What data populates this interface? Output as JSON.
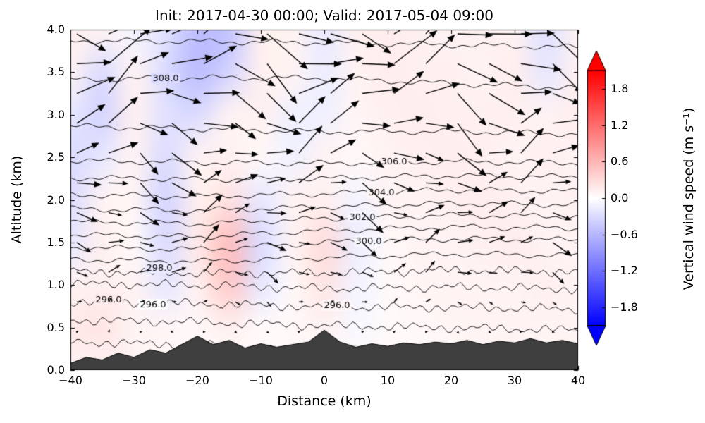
{
  "chart_data": {
    "type": "heatmap",
    "title": "Init: 2017-04-30 00:00; Valid: 2017-05-04 09:00",
    "xlabel": "Distance (km)",
    "ylabel": "Altitude (km)",
    "xlim": [
      -40,
      40
    ],
    "ylim": [
      0,
      4
    ],
    "grid": false,
    "x_ticks": [
      {
        "value": -40,
        "label": "−40"
      },
      {
        "value": -30,
        "label": "−30"
      },
      {
        "value": -20,
        "label": "−20"
      },
      {
        "value": -10,
        "label": "−10"
      },
      {
        "value": 0,
        "label": "0"
      },
      {
        "value": 10,
        "label": "10"
      },
      {
        "value": 20,
        "label": "20"
      },
      {
        "value": 30,
        "label": "30"
      },
      {
        "value": 40,
        "label": "40"
      }
    ],
    "y_ticks": [
      {
        "value": 0.0,
        "label": "0.0"
      },
      {
        "value": 0.5,
        "label": "0.5"
      },
      {
        "value": 1.0,
        "label": "1.0"
      },
      {
        "value": 1.5,
        "label": "1.5"
      },
      {
        "value": 2.0,
        "label": "2.0"
      },
      {
        "value": 2.5,
        "label": "2.5"
      },
      {
        "value": 3.0,
        "label": "3.0"
      },
      {
        "value": 3.5,
        "label": "3.5"
      },
      {
        "value": 4.0,
        "label": "4.0"
      }
    ],
    "colorbar": {
      "label": "Vertical wind speed (m s⁻¹)",
      "cmap": "bwr",
      "extend": "both",
      "vmin": -2.1,
      "vmax": 2.1,
      "ticks": [
        {
          "value": 1.8,
          "label": "1.8"
        },
        {
          "value": 1.2,
          "label": "1.2"
        },
        {
          "value": 0.6,
          "label": "0.6"
        },
        {
          "value": 0.0,
          "label": "0.0"
        },
        {
          "value": -0.6,
          "label": "−0.6"
        },
        {
          "value": -1.2,
          "label": "−1.2"
        },
        {
          "value": -1.8,
          "label": "−1.8"
        }
      ]
    },
    "w_field": {
      "x": [
        -40,
        -35,
        -30,
        -25,
        -20,
        -15,
        -10,
        -5,
        0,
        5,
        10,
        15,
        20,
        25,
        30,
        35,
        40
      ],
      "y": [
        0,
        0.5,
        1,
        1.5,
        2,
        2.5,
        3,
        3.5,
        4
      ],
      "values": [
        [
          0.08,
          0.1,
          0.1,
          0.06,
          0.05,
          0.06,
          0.05,
          0.05,
          0.06,
          0.05,
          0.05,
          0.05,
          0.05,
          0.06,
          0.05,
          0.05,
          0.05
        ],
        [
          0.18,
          0.22,
          0.1,
          0.08,
          0.06,
          0.12,
          0.05,
          0.06,
          0.1,
          -0.06,
          0.05,
          0.06,
          0.08,
          0.1,
          0.1,
          0.1,
          0.1
        ],
        [
          0.1,
          0.12,
          0.1,
          -0.2,
          0.12,
          0.45,
          -0.2,
          0.06,
          0.22,
          -0.1,
          0.05,
          0.08,
          0.1,
          0.1,
          0.1,
          0.12,
          0.1
        ],
        [
          -0.2,
          0.12,
          0.05,
          -0.3,
          0.18,
          0.55,
          -0.3,
          0.1,
          0.3,
          -0.15,
          0.06,
          0.1,
          0.1,
          0.12,
          0.15,
          0.1,
          0.1
        ],
        [
          -0.3,
          0.1,
          0.08,
          -0.35,
          0.12,
          0.25,
          -0.2,
          0.1,
          0.12,
          -0.1,
          0.1,
          0.1,
          0.12,
          0.15,
          0.12,
          0.1,
          0.12
        ],
        [
          -0.3,
          -0.2,
          0.1,
          -0.3,
          0.1,
          0.12,
          0.05,
          -0.12,
          0.1,
          0.06,
          0.1,
          0.12,
          0.15,
          0.12,
          0.1,
          0.12,
          0.1
        ],
        [
          -0.2,
          -0.35,
          0.12,
          -0.25,
          -0.3,
          0.1,
          0.12,
          -0.12,
          -0.12,
          0.08,
          0.12,
          0.15,
          0.12,
          0.12,
          0.12,
          0.1,
          0.15
        ],
        [
          0.1,
          -0.3,
          0.1,
          -0.3,
          -0.55,
          -0.35,
          0.12,
          0.1,
          -0.15,
          0.1,
          0.15,
          0.12,
          0.12,
          0.1,
          0.15,
          -0.2,
          0.12
        ],
        [
          0.12,
          0.1,
          -0.1,
          -0.25,
          -0.55,
          -0.5,
          0.12,
          0.1,
          -0.18,
          0.12,
          0.15,
          0.12,
          0.1,
          0.12,
          0.1,
          -0.25,
          0.1
        ]
      ]
    },
    "theta_contours": {
      "levels": [
        294,
        295,
        296,
        297,
        298,
        299,
        300,
        301,
        302,
        303,
        304,
        305,
        306,
        307,
        308,
        309
      ],
      "x": [
        -40,
        -20,
        0,
        20,
        40
      ],
      "y": [
        0,
        0.5,
        1,
        1.5,
        2,
        2.5,
        3,
        3.5,
        4
      ],
      "profiles": [
        [
          292.8,
          294.6,
          296.9,
          300.4,
          303.7,
          306.2,
          307.3,
          308.15,
          309.3
        ],
        [
          293.0,
          294.7,
          297.0,
          300.6,
          303.8,
          306.3,
          307.35,
          308.1,
          309.35
        ],
        [
          293.4,
          294.9,
          297.2,
          300.0,
          303.6,
          306.4,
          307.4,
          308.1,
          309.4
        ],
        [
          293.5,
          295.0,
          297.1,
          299.7,
          303.3,
          306.3,
          307.45,
          308.2,
          309.45
        ],
        [
          293.5,
          295.1,
          297.2,
          299.8,
          303.4,
          306.4,
          307.5,
          308.3,
          309.5
        ]
      ],
      "labels": [
        {
          "text": "308.0",
          "level": 308,
          "x": -25
        },
        {
          "text": "306.0",
          "level": 306,
          "x": 11
        },
        {
          "text": "304.0",
          "level": 304,
          "x": 9
        },
        {
          "text": "302.0",
          "level": 302,
          "x": 6
        },
        {
          "text": "300.0",
          "level": 300,
          "x": 7
        },
        {
          "text": "298.0",
          "level": 298,
          "x": -26
        },
        {
          "text": "296.0",
          "level": 296,
          "x": -34
        },
        {
          "text": "296.0",
          "level": 296,
          "x": -27
        },
        {
          "text": "296.0",
          "level": 296,
          "x": 2
        }
      ]
    },
    "quiver": {
      "x_start": -39,
      "x_step": 5,
      "scale_km_per_ms": 0.6,
      "rows": [
        {
          "y": 0.45,
          "u": 0.5
        },
        {
          "y": 0.8,
          "u": 1.2
        },
        {
          "y": 1.15,
          "u": 3.0
        },
        {
          "y": 1.5,
          "u": 4.0
        },
        {
          "y": 1.85,
          "u": 4.5
        },
        {
          "y": 2.2,
          "u": 5.5
        },
        {
          "y": 2.55,
          "u": 6.5
        },
        {
          "y": 2.9,
          "u": 7.5
        },
        {
          "y": 3.25,
          "u": 8.5
        },
        {
          "y": 3.6,
          "u": 9.5
        },
        {
          "y": 3.95,
          "u": 10.0
        }
      ]
    },
    "terrain": {
      "color": "#3f3f3f",
      "x": [
        -40,
        -37.5,
        -35,
        -32.5,
        -30,
        -27.5,
        -25,
        -22.5,
        -20,
        -17.5,
        -15,
        -12.5,
        -10,
        -7.5,
        -5,
        -2.5,
        0,
        2.5,
        5,
        7.5,
        10,
        12.5,
        15,
        17.5,
        20,
        22.5,
        25,
        27.5,
        30,
        32.5,
        35,
        37.5,
        40
      ],
      "height": [
        0.08,
        0.15,
        0.12,
        0.2,
        0.15,
        0.24,
        0.2,
        0.3,
        0.4,
        0.3,
        0.35,
        0.26,
        0.31,
        0.27,
        0.3,
        0.33,
        0.47,
        0.33,
        0.27,
        0.31,
        0.28,
        0.32,
        0.3,
        0.33,
        0.31,
        0.35,
        0.3,
        0.34,
        0.32,
        0.37,
        0.32,
        0.35,
        0.31
      ]
    }
  }
}
